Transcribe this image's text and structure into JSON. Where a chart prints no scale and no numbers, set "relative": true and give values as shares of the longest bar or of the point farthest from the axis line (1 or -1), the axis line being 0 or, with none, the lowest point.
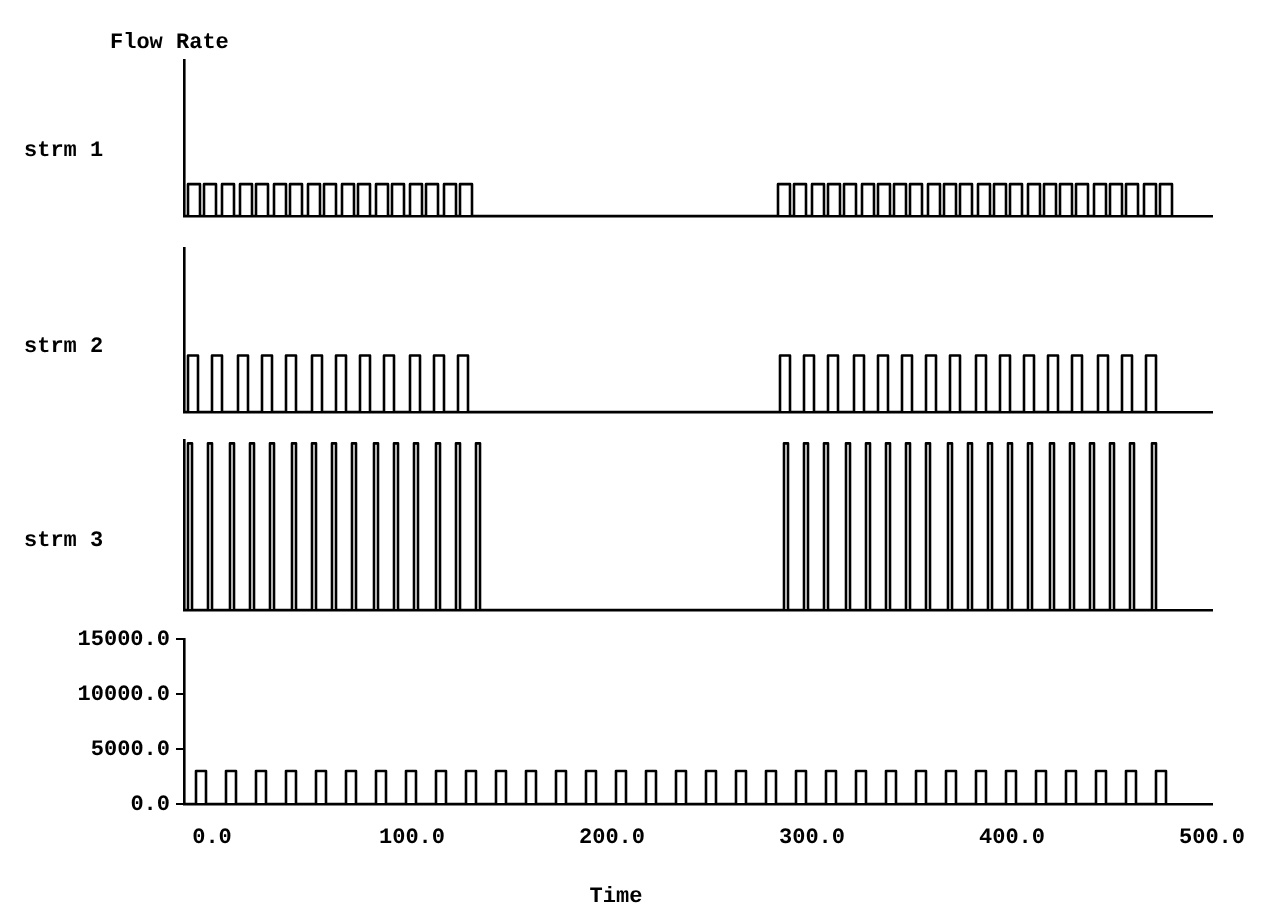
{
  "chart_data": [
    {
      "type": "step",
      "title": "Flow Rate",
      "ylabel": "strm 1",
      "relative": true,
      "xlim": [
        -14,
        500
      ],
      "tick_labels": false,
      "series": [
        {
          "color": "#000000",
          "x": [
            -14,
            -12,
            -6,
            -4,
            2,
            5,
            11,
            14,
            20,
            22,
            28,
            31,
            37,
            39,
            45,
            48,
            54,
            56,
            62,
            65,
            71,
            73,
            79,
            82,
            88,
            90,
            96,
            99,
            105,
            107,
            113,
            116,
            122,
            124,
            130,
            283,
            289,
            291,
            297,
            300,
            306,
            308,
            314,
            316,
            322,
            325,
            331,
            333,
            339,
            341,
            347,
            349,
            355,
            358,
            364,
            366,
            372,
            374,
            380,
            383,
            389,
            391,
            397,
            399,
            405,
            408,
            414,
            416,
            422,
            424,
            430,
            432,
            438,
            441,
            447,
            449,
            455,
            457,
            463,
            466,
            472,
            474,
            480
          ],
          "values": [
            0,
            1,
            0,
            1,
            0,
            1,
            0,
            1,
            0,
            1,
            0,
            1,
            0,
            1,
            0,
            1,
            0,
            1,
            0,
            1,
            0,
            1,
            0,
            1,
            0,
            1,
            0,
            1,
            0,
            1,
            0,
            1,
            0,
            1,
            0,
            1,
            0,
            1,
            0,
            1,
            0,
            1,
            0,
            1,
            0,
            1,
            0,
            1,
            0,
            1,
            0,
            1,
            0,
            1,
            0,
            1,
            0,
            1,
            0,
            1,
            0,
            1,
            0,
            1,
            0,
            1,
            0,
            1,
            0,
            1,
            0,
            1,
            0,
            1,
            0,
            1,
            0,
            1,
            0,
            1,
            0,
            1,
            0
          ]
        }
      ]
    },
    {
      "type": "step",
      "ylabel": "strm 2",
      "relative": true,
      "xlim": [
        -14,
        500
      ],
      "tick_labels": false,
      "series": [
        {
          "color": "#000000",
          "x": [
            -14,
            -12,
            -7,
            0,
            5,
            13,
            18,
            25,
            30,
            37,
            42,
            50,
            55,
            62,
            67,
            74,
            79,
            86,
            91,
            99,
            104,
            111,
            116,
            123,
            128,
            284,
            289,
            296,
            301,
            308,
            313,
            321,
            326,
            333,
            338,
            345,
            350,
            357,
            362,
            369,
            374,
            382,
            387,
            394,
            399,
            406,
            411,
            418,
            423,
            430,
            435,
            443,
            448,
            455,
            460,
            467,
            472
          ],
          "values": [
            0,
            1,
            0,
            1,
            0,
            1,
            0,
            1,
            0,
            1,
            0,
            1,
            0,
            1,
            0,
            1,
            0,
            1,
            0,
            1,
            0,
            1,
            0,
            1,
            0,
            1,
            0,
            1,
            0,
            1,
            0,
            1,
            0,
            1,
            0,
            1,
            0,
            1,
            0,
            1,
            0,
            1,
            0,
            1,
            0,
            1,
            0,
            1,
            0,
            1,
            0,
            1,
            0,
            1,
            0,
            1,
            0
          ]
        }
      ]
    },
    {
      "type": "step",
      "ylabel": "strm 3",
      "relative": true,
      "xlim": [
        -14,
        500
      ],
      "tick_labels": false,
      "series": [
        {
          "color": "#000000",
          "x": [
            -14,
            -12,
            -10,
            -2,
            0,
            9,
            11,
            19,
            21,
            29,
            31,
            40,
            42,
            50,
            52,
            60,
            62,
            70,
            72,
            81,
            83,
            91,
            93,
            101,
            103,
            112,
            114,
            122,
            124,
            132,
            134,
            286,
            288,
            296,
            298,
            306,
            308,
            317,
            319,
            327,
            329,
            337,
            339,
            347,
            349,
            357,
            359,
            368,
            370,
            378,
            380,
            388,
            390,
            398,
            400,
            408,
            410,
            419,
            421,
            429,
            431,
            439,
            441,
            449,
            451,
            459,
            461,
            470,
            472
          ],
          "values": [
            0,
            1,
            0,
            1,
            0,
            1,
            0,
            1,
            0,
            1,
            0,
            1,
            0,
            1,
            0,
            1,
            0,
            1,
            0,
            1,
            0,
            1,
            0,
            1,
            0,
            1,
            0,
            1,
            0,
            1,
            0,
            1,
            0,
            1,
            0,
            1,
            0,
            1,
            0,
            1,
            0,
            1,
            0,
            1,
            0,
            1,
            0,
            1,
            0,
            1,
            0,
            1,
            0,
            1,
            0,
            1,
            0,
            1,
            0,
            1,
            0,
            1,
            0,
            1,
            0,
            1,
            0,
            1,
            0
          ]
        }
      ]
    },
    {
      "type": "step",
      "xlabel": "Time",
      "xlim": [
        -14,
        500
      ],
      "ylim": [
        0,
        15000
      ],
      "xticks": [
        {
          "value": 0,
          "label": "0.0"
        },
        {
          "value": 100,
          "label": "100.0"
        },
        {
          "value": 200,
          "label": "200.0"
        },
        {
          "value": 300,
          "label": "300.0"
        },
        {
          "value": 400,
          "label": "400.0"
        },
        {
          "value": 500,
          "label": "500.0"
        }
      ],
      "yticks": [
        {
          "value": 0,
          "label": "0.0"
        },
        {
          "value": 5000,
          "label": "5000.0"
        },
        {
          "value": 10000,
          "label": "10000.0"
        },
        {
          "value": 15000,
          "label": "15000.0"
        }
      ],
      "series": [
        {
          "color": "#000000",
          "x": [
            -14,
            -8,
            -3,
            7,
            12,
            22,
            27,
            37,
            42,
            52,
            57,
            67,
            72,
            82,
            87,
            97,
            102,
            112,
            117,
            127,
            132,
            142,
            147,
            157,
            162,
            172,
            177,
            187,
            192,
            202,
            207,
            217,
            222,
            232,
            237,
            247,
            252,
            262,
            267,
            277,
            282,
            292,
            297,
            307,
            312,
            322,
            327,
            337,
            342,
            352,
            357,
            367,
            372,
            382,
            387,
            397,
            402,
            412,
            417,
            427,
            432,
            442,
            447,
            457,
            462,
            472,
            477
          ],
          "values": [
            0,
            3000,
            0,
            3000,
            0,
            3000,
            0,
            3000,
            0,
            3000,
            0,
            3000,
            0,
            3000,
            0,
            3000,
            0,
            3000,
            0,
            3000,
            0,
            3000,
            0,
            3000,
            0,
            3000,
            0,
            3000,
            0,
            3000,
            0,
            3000,
            0,
            3000,
            0,
            3000,
            0,
            3000,
            0,
            3000,
            0,
            3000,
            0,
            3000,
            0,
            3000,
            0,
            3000,
            0,
            3000,
            0,
            3000,
            0,
            3000,
            0,
            3000,
            0,
            3000,
            0,
            3000,
            0,
            3000,
            0,
            3000,
            0,
            3000,
            0
          ]
        }
      ]
    }
  ]
}
